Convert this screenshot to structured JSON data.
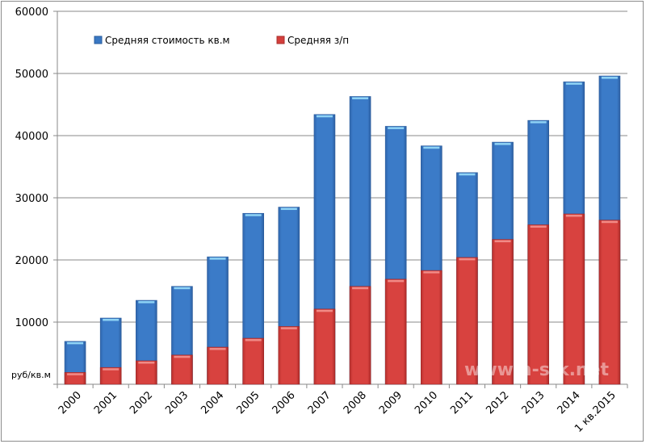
{
  "chart_data": {
    "type": "bar",
    "title": "",
    "xlabel": "",
    "ylabel": "руб/кв.м",
    "ylim": [
      0,
      60000
    ],
    "yticks": [
      0,
      10000,
      20000,
      30000,
      40000,
      50000,
      60000
    ],
    "ytick_labels": [
      "",
      "10000",
      "20000",
      "30000",
      "40000",
      "50000",
      "60000"
    ],
    "grid": true,
    "overlap": true,
    "legend_position": "top",
    "categories": [
      "2000",
      "2001",
      "2002",
      "2003",
      "2004",
      "2005",
      "2006",
      "2007",
      "2008",
      "2009",
      "2010",
      "2011",
      "2012",
      "2013",
      "2014",
      "1 кв.2015"
    ],
    "series": [
      {
        "name": "Средняя стоимость кв.м",
        "color": "#3a78c3",
        "values": [
          6900,
          10650,
          13500,
          15750,
          20500,
          27500,
          28500,
          43400,
          46300,
          41500,
          38350,
          34050,
          38950,
          42450,
          48650,
          49600
        ]
      },
      {
        "name": "Средняя з/п",
        "color": "#d43f3c",
        "values": [
          1900,
          2700,
          3770,
          4700,
          5970,
          7400,
          9300,
          12100,
          15750,
          16900,
          18300,
          20400,
          23300,
          25650,
          27400,
          26400
        ]
      }
    ],
    "watermark": "www.n-s-k.net"
  }
}
